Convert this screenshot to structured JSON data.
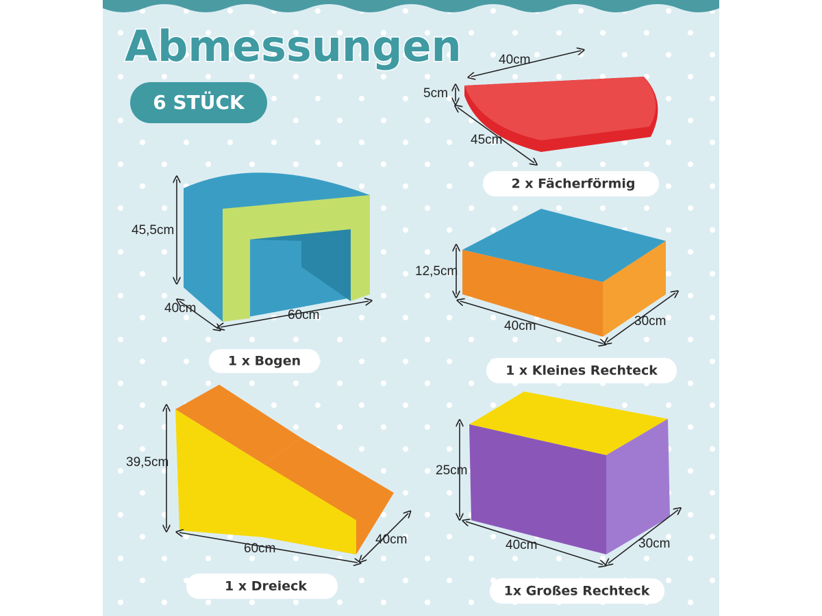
{
  "header": {
    "title": "Abmessungen",
    "badge": "6 STÜCK"
  },
  "items": [
    {
      "label": "2 x Fächerförmig",
      "dimensions": [
        "40cm",
        "5cm",
        "45cm"
      ]
    },
    {
      "label": "1 x Bogen",
      "dimensions": [
        "45,5cm",
        "40cm",
        "60cm"
      ]
    },
    {
      "label": "1 x Kleines Rechteck",
      "dimensions": [
        "12,5cm",
        "40cm",
        "30cm"
      ]
    },
    {
      "label": "1 x Dreieck",
      "dimensions": [
        "39,5cm",
        "60cm",
        "40cm"
      ]
    },
    {
      "label": "1x Großes Rechteck",
      "dimensions": [
        "25cm",
        "40cm",
        "30cm"
      ]
    }
  ]
}
